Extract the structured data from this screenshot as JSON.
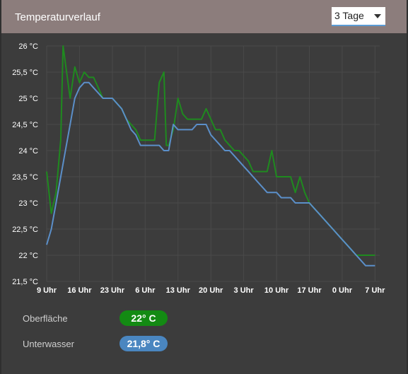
{
  "header": {
    "title": "Temperaturverlauf",
    "range_value": "3 Tage"
  },
  "colors": {
    "surface": "#1f8a1f",
    "underwater": "#5b8fc9",
    "header": "#8c7d7c"
  },
  "legend": [
    {
      "label": "Oberfläche",
      "value": "22° C",
      "color": "#138a13"
    },
    {
      "label": "Unterwasser",
      "value": "21,8° C",
      "color": "#4a86c0"
    }
  ],
  "chart_data": {
    "type": "line",
    "y_min": 21.5,
    "y_max": 26,
    "y_ticks": [
      "21,5 °C",
      "22 °C",
      "22,5 °C",
      "23 °C",
      "23,5 °C",
      "24 °C",
      "24,5 °C",
      "25 °C",
      "25,5 °C",
      "26 °C"
    ],
    "y_tick_values": [
      21.5,
      22,
      22.5,
      23,
      23.5,
      24,
      24.5,
      25,
      25.5,
      26
    ],
    "x_min": 0,
    "x_max": 71,
    "x_ticks": [
      "9 Uhr",
      "16 Uhr",
      "23 Uhr",
      "6 Uhr",
      "13 Uhr",
      "20 Uhr",
      "3 Uhr",
      "10 Uhr",
      "17 Uhr",
      "0 Uhr",
      "7 Uhr"
    ],
    "x_tick_hours": [
      0,
      7,
      14,
      21,
      28,
      35,
      42,
      49,
      56,
      63,
      70
    ],
    "grid": true,
    "series": [
      {
        "name": "Oberfläche",
        "points": [
          [
            0,
            23.6
          ],
          [
            1,
            22.8
          ],
          [
            2,
            23.2
          ],
          [
            3,
            24.2
          ],
          [
            3.5,
            26.0
          ],
          [
            5,
            25.0
          ],
          [
            6,
            25.6
          ],
          [
            7,
            25.3
          ],
          [
            8,
            25.5
          ],
          [
            9,
            25.4
          ],
          [
            10,
            25.4
          ],
          [
            11,
            25.2
          ],
          [
            12,
            25.0
          ],
          [
            14,
            25.0
          ],
          [
            15,
            24.9
          ],
          [
            16,
            24.8
          ],
          [
            17,
            24.6
          ],
          [
            18,
            24.5
          ],
          [
            19,
            24.4
          ],
          [
            20,
            24.2
          ],
          [
            21,
            24.2
          ],
          [
            22,
            24.2
          ],
          [
            23,
            24.2
          ],
          [
            24,
            25.3
          ],
          [
            25,
            25.5
          ],
          [
            25.5,
            24.1
          ],
          [
            26,
            24.1
          ],
          [
            27,
            24.4
          ],
          [
            28,
            25.0
          ],
          [
            29,
            24.7
          ],
          [
            30,
            24.6
          ],
          [
            31,
            24.6
          ],
          [
            32,
            24.6
          ],
          [
            33,
            24.6
          ],
          [
            34,
            24.8
          ],
          [
            35,
            24.6
          ],
          [
            36,
            24.4
          ],
          [
            37,
            24.4
          ],
          [
            38,
            24.2
          ],
          [
            39,
            24.1
          ],
          [
            40,
            24.0
          ],
          [
            41,
            24.0
          ],
          [
            42,
            23.9
          ],
          [
            43,
            23.8
          ],
          [
            44,
            23.6
          ],
          [
            45,
            23.6
          ],
          [
            46,
            23.6
          ],
          [
            47,
            23.6
          ],
          [
            48,
            24.0
          ],
          [
            49,
            23.5
          ],
          [
            50,
            23.5
          ],
          [
            51,
            23.5
          ],
          [
            52,
            23.5
          ],
          [
            53,
            23.2
          ],
          [
            54,
            23.5
          ],
          [
            55,
            23.2
          ],
          [
            56,
            23.0
          ],
          [
            57,
            22.9
          ],
          [
            58,
            22.8
          ],
          [
            59,
            22.7
          ],
          [
            60,
            22.6
          ],
          [
            61,
            22.5
          ],
          [
            62,
            22.4
          ],
          [
            63,
            22.3
          ],
          [
            64,
            22.2
          ],
          [
            65,
            22.1
          ],
          [
            66,
            22.0
          ],
          [
            67,
            22.0
          ],
          [
            68,
            22.0
          ],
          [
            69,
            22.0
          ],
          [
            70,
            22.0
          ]
        ]
      },
      {
        "name": "Unterwasser",
        "points": [
          [
            0,
            22.2
          ],
          [
            1,
            22.5
          ],
          [
            2,
            23.0
          ],
          [
            3,
            23.5
          ],
          [
            4,
            24.0
          ],
          [
            5,
            24.5
          ],
          [
            6,
            25.0
          ],
          [
            7,
            25.2
          ],
          [
            8,
            25.3
          ],
          [
            9,
            25.3
          ],
          [
            10,
            25.2
          ],
          [
            11,
            25.1
          ],
          [
            12,
            25.0
          ],
          [
            13,
            25.0
          ],
          [
            14,
            25.0
          ],
          [
            15,
            24.9
          ],
          [
            16,
            24.8
          ],
          [
            17,
            24.6
          ],
          [
            18,
            24.4
          ],
          [
            19,
            24.3
          ],
          [
            20,
            24.1
          ],
          [
            21,
            24.1
          ],
          [
            22,
            24.1
          ],
          [
            23,
            24.1
          ],
          [
            24,
            24.1
          ],
          [
            25,
            24.0
          ],
          [
            26,
            24.0
          ],
          [
            27,
            24.5
          ],
          [
            28,
            24.4
          ],
          [
            29,
            24.4
          ],
          [
            30,
            24.4
          ],
          [
            31,
            24.4
          ],
          [
            32,
            24.5
          ],
          [
            33,
            24.5
          ],
          [
            34,
            24.5
          ],
          [
            35,
            24.3
          ],
          [
            36,
            24.2
          ],
          [
            37,
            24.1
          ],
          [
            38,
            24.0
          ],
          [
            39,
            24.0
          ],
          [
            40,
            23.9
          ],
          [
            41,
            23.8
          ],
          [
            42,
            23.7
          ],
          [
            43,
            23.6
          ],
          [
            44,
            23.5
          ],
          [
            45,
            23.4
          ],
          [
            46,
            23.3
          ],
          [
            47,
            23.2
          ],
          [
            48,
            23.2
          ],
          [
            49,
            23.2
          ],
          [
            50,
            23.1
          ],
          [
            51,
            23.1
          ],
          [
            52,
            23.1
          ],
          [
            53,
            23.0
          ],
          [
            54,
            23.0
          ],
          [
            55,
            23.0
          ],
          [
            56,
            23.0
          ],
          [
            57,
            22.9
          ],
          [
            58,
            22.8
          ],
          [
            59,
            22.7
          ],
          [
            60,
            22.6
          ],
          [
            61,
            22.5
          ],
          [
            62,
            22.4
          ],
          [
            63,
            22.3
          ],
          [
            64,
            22.2
          ],
          [
            65,
            22.1
          ],
          [
            66,
            22.0
          ],
          [
            67,
            21.9
          ],
          [
            68,
            21.8
          ],
          [
            69,
            21.8
          ],
          [
            70,
            21.8
          ]
        ]
      }
    ]
  }
}
